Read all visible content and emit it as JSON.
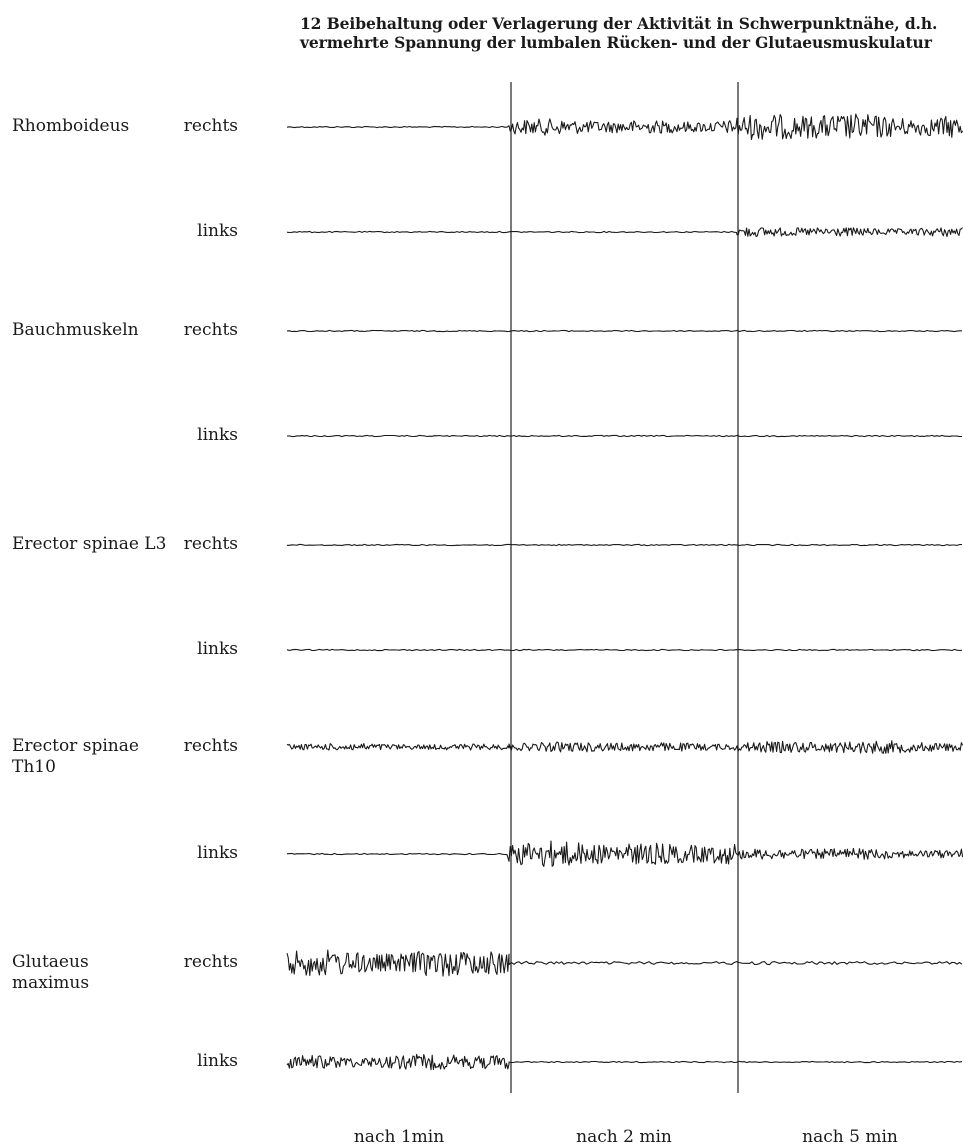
{
  "caption": {
    "line1": "12 Beibehaltung oder Verlagerung der Aktivität in Schwerpunktnähe, d.h.",
    "line2": "vermehrte Spannung der lumbalen Rücken- und der Glutaeusmuskulatur"
  },
  "chart_data": {
    "type": "line",
    "title": "12 Beibehaltung oder Verlagerung der Aktivität in Schwerpunktnähe, d.h. vermehrte Spannung der lumbalen Rücken- und der Glutaeusmuskulatur",
    "segments": [
      "nach 1 min",
      "nach 2 min",
      "nach 5 min"
    ],
    "activity_scale": "0 = isoelectric baseline, 1 = maximum burst amplitude (estimated)",
    "muscles": [
      {
        "name": "Rhomboideus",
        "channels": [
          {
            "side": "rechts",
            "activity": [
              0.02,
              0.55,
              0.95
            ]
          },
          {
            "side": "links",
            "activity": [
              0.02,
              0.04,
              0.35
            ]
          }
        ]
      },
      {
        "name": "Bauchmuskeln",
        "channels": [
          {
            "side": "rechts",
            "activity": [
              0.01,
              0.01,
              0.01
            ]
          },
          {
            "side": "links",
            "activity": [
              0.02,
              0.01,
              0.01
            ]
          }
        ]
      },
      {
        "name": "Erector spinae L3",
        "channels": [
          {
            "side": "rechts",
            "activity": [
              0.01,
              0.01,
              0.01
            ]
          },
          {
            "side": "links",
            "activity": [
              0.01,
              0.01,
              0.01
            ]
          }
        ]
      },
      {
        "name": "Erector spinae Th10",
        "channels": [
          {
            "side": "rechts",
            "activity": [
              0.25,
              0.35,
              0.45
            ]
          },
          {
            "side": "links",
            "activity": [
              0.05,
              0.9,
              0.4
            ]
          }
        ]
      },
      {
        "name": "Glutaeus maximus",
        "channels": [
          {
            "side": "rechts",
            "activity": [
              1.0,
              0.12,
              0.12
            ]
          },
          {
            "side": "links",
            "activity": [
              0.55,
              0.02,
              0.02
            ]
          }
        ]
      }
    ],
    "grid": false,
    "legend": "none"
  },
  "row_labels": [
    {
      "muscle": "Rhomboideus",
      "side": "rechts"
    },
    {
      "muscle": "",
      "side": "links"
    },
    {
      "muscle": "Bauchmuskeln",
      "side": "rechts"
    },
    {
      "muscle": "",
      "side": "links"
    },
    {
      "muscle": "Erector spinae L3",
      "side": "rechts"
    },
    {
      "muscle": "",
      "side": "links"
    },
    {
      "muscle": "Erector spinae\nTh10",
      "side": "rechts"
    },
    {
      "muscle": "",
      "side": "links"
    },
    {
      "muscle": "Glutaeus\nmaximus",
      "side": "rechts"
    },
    {
      "muscle": "",
      "side": "links"
    }
  ],
  "x_labels": [
    "nach 1min",
    "nach 2 min",
    "nach 5 min"
  ],
  "colors": {
    "trace": "#1a1a1a",
    "divider": "#222222",
    "text": "#1a1a1a"
  }
}
